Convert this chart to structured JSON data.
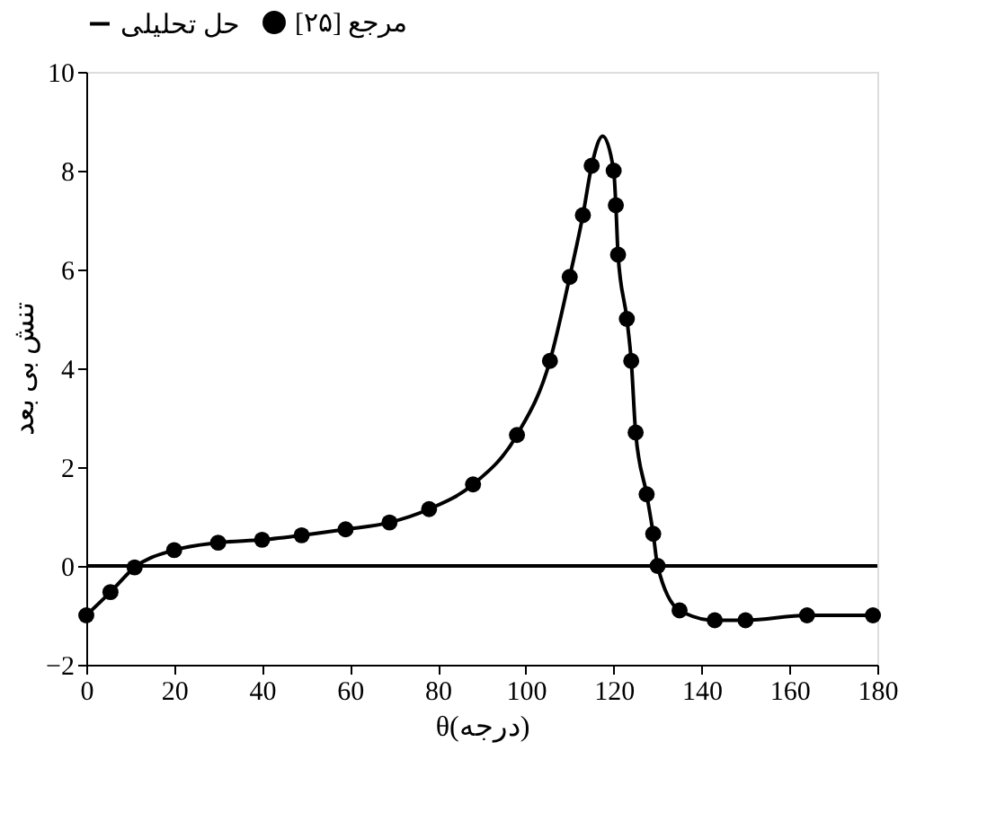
{
  "chart_data": {
    "type": "line",
    "xlabel": "θ(درجه)",
    "ylabel": "تنش بی بعد",
    "xlim": [
      0,
      180
    ],
    "xticks": [
      0,
      20,
      40,
      60,
      80,
      100,
      120,
      140,
      160,
      180
    ],
    "ylim": [
      -2,
      10
    ],
    "yticks": [
      -2,
      0,
      2,
      4,
      6,
      8,
      10
    ],
    "grid": false,
    "legend": "top",
    "ref_lines": [
      {
        "axis": "y",
        "value": 0,
        "color": "#000000"
      }
    ],
    "series": [
      {
        "name": "حل تحلیلی",
        "color": "#000000",
        "line_style": "solid",
        "marker": "none",
        "x": [
          0,
          5.5,
          11,
          20,
          30,
          40,
          49,
          59,
          69,
          78,
          88,
          98,
          105.5,
          110,
          113,
          115,
          117.5,
          120,
          120.5,
          121,
          123,
          124,
          125,
          127.5,
          129,
          130,
          135,
          143,
          150,
          164,
          179
        ],
        "values": [
          -1.0,
          -0.53,
          -0.03,
          0.32,
          0.47,
          0.53,
          0.62,
          0.74,
          0.88,
          1.15,
          1.65,
          2.65,
          4.15,
          5.85,
          7.1,
          8.1,
          8.7,
          8.0,
          7.3,
          6.3,
          5.0,
          4.15,
          2.7,
          1.45,
          0.65,
          0.0,
          -0.9,
          -1.1,
          -1.1,
          -1.0,
          -1.0
        ]
      },
      {
        "name": "مرجع [۲۵]",
        "type": "scatter",
        "color": "#000000",
        "marker": "circle",
        "x": [
          0,
          5.5,
          11,
          20,
          30,
          40,
          49,
          59,
          69,
          78,
          88,
          98,
          105.5,
          110,
          113,
          115,
          120,
          120.5,
          121,
          123,
          124,
          125,
          127.5,
          129,
          130,
          135,
          143,
          150,
          164,
          179
        ],
        "values": [
          -1.0,
          -0.53,
          -0.03,
          0.32,
          0.47,
          0.53,
          0.62,
          0.74,
          0.88,
          1.15,
          1.65,
          2.65,
          4.15,
          5.85,
          7.1,
          8.1,
          8.0,
          7.3,
          6.3,
          5.0,
          4.15,
          2.7,
          1.45,
          0.65,
          0.0,
          -0.9,
          -1.1,
          -1.1,
          -1.0,
          -1.0
        ]
      }
    ]
  }
}
